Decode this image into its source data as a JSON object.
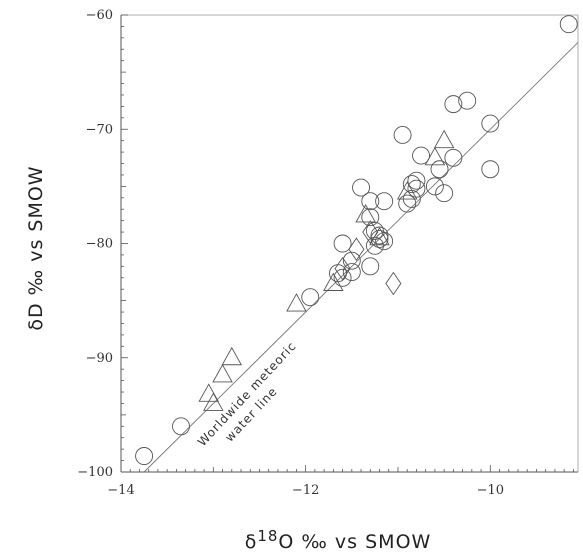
{
  "chart_data": {
    "type": "scatter",
    "title": "",
    "xlabel": "δ18O ‰ vs SMOW",
    "xlabel_parts": {
      "prefix": "δ",
      "superscript": "18",
      "rest": "O ‰ vs SMOW"
    },
    "ylabel": "δD ‰ vs SMOW",
    "xlim": [
      -14,
      -9.05
    ],
    "ylim": [
      -100,
      -60
    ],
    "xticks": [
      -14,
      -12,
      -10
    ],
    "xtick_labels": [
      "−14",
      "−12",
      "−10"
    ],
    "yticks": [
      -100,
      -90,
      -80,
      -70,
      -60
    ],
    "ytick_labels": [
      "−100",
      "−90",
      "−80",
      "−70",
      "−60"
    ],
    "grid": false,
    "legend": "none",
    "reference_line": {
      "name": "Worldwide meteoric water line",
      "label_lines": [
        "Worldwide meteoric",
        "water line"
      ],
      "slope": 8,
      "intercept": 10
    },
    "series": [
      {
        "marker": "circle",
        "points": [
          [
            -9.15,
            -60.8
          ],
          [
            -13.75,
            -98.6
          ],
          [
            -13.35,
            -96.0
          ],
          [
            -10.4,
            -67.8
          ],
          [
            -10.25,
            -67.5
          ],
          [
            -10.0,
            -69.5
          ],
          [
            -10.0,
            -73.5
          ],
          [
            -10.95,
            -70.5
          ],
          [
            -10.4,
            -72.5
          ],
          [
            -10.5,
            -75.6
          ],
          [
            -10.55,
            -73.5
          ],
          [
            -10.6,
            -75.0
          ],
          [
            -10.75,
            -72.3
          ],
          [
            -10.8,
            -74.5
          ],
          [
            -10.8,
            -75.2
          ],
          [
            -10.85,
            -76.1
          ],
          [
            -10.85,
            -74.8
          ],
          [
            -10.9,
            -76.5
          ],
          [
            -11.15,
            -76.3
          ],
          [
            -11.4,
            -75.1
          ],
          [
            -11.3,
            -76.3
          ],
          [
            -11.3,
            -77.7
          ],
          [
            -11.25,
            -78.9
          ],
          [
            -11.2,
            -79.3
          ],
          [
            -11.15,
            -79.8
          ],
          [
            -11.25,
            -80.2
          ],
          [
            -11.3,
            -82.0
          ],
          [
            -11.6,
            -80.0
          ],
          [
            -11.5,
            -81.5
          ],
          [
            -11.5,
            -82.5
          ],
          [
            -11.6,
            -83.0
          ],
          [
            -11.65,
            -82.6
          ],
          [
            -11.95,
            -84.7
          ],
          [
            -11.2,
            -79.6
          ]
        ]
      },
      {
        "marker": "triangle",
        "points": [
          [
            -12.1,
            -85.3
          ],
          [
            -12.8,
            -90.0
          ],
          [
            -12.9,
            -91.5
          ],
          [
            -13.05,
            -93.2
          ],
          [
            -13.0,
            -94.0
          ],
          [
            -11.7,
            -83.5
          ],
          [
            -11.35,
            -77.5
          ],
          [
            -10.9,
            -75.5
          ],
          [
            -10.6,
            -72.5
          ],
          [
            -10.5,
            -71.0
          ],
          [
            -11.2,
            -79.5
          ]
        ]
      },
      {
        "marker": "diamond",
        "points": [
          [
            -11.05,
            -83.5
          ],
          [
            -11.3,
            -79.0
          ],
          [
            -11.45,
            -80.5
          ],
          [
            -11.6,
            -82.2
          ]
        ]
      }
    ],
    "colors": {
      "marker": "#555555",
      "line": "#777777",
      "axis": "#555555",
      "frame": "#999999"
    }
  }
}
